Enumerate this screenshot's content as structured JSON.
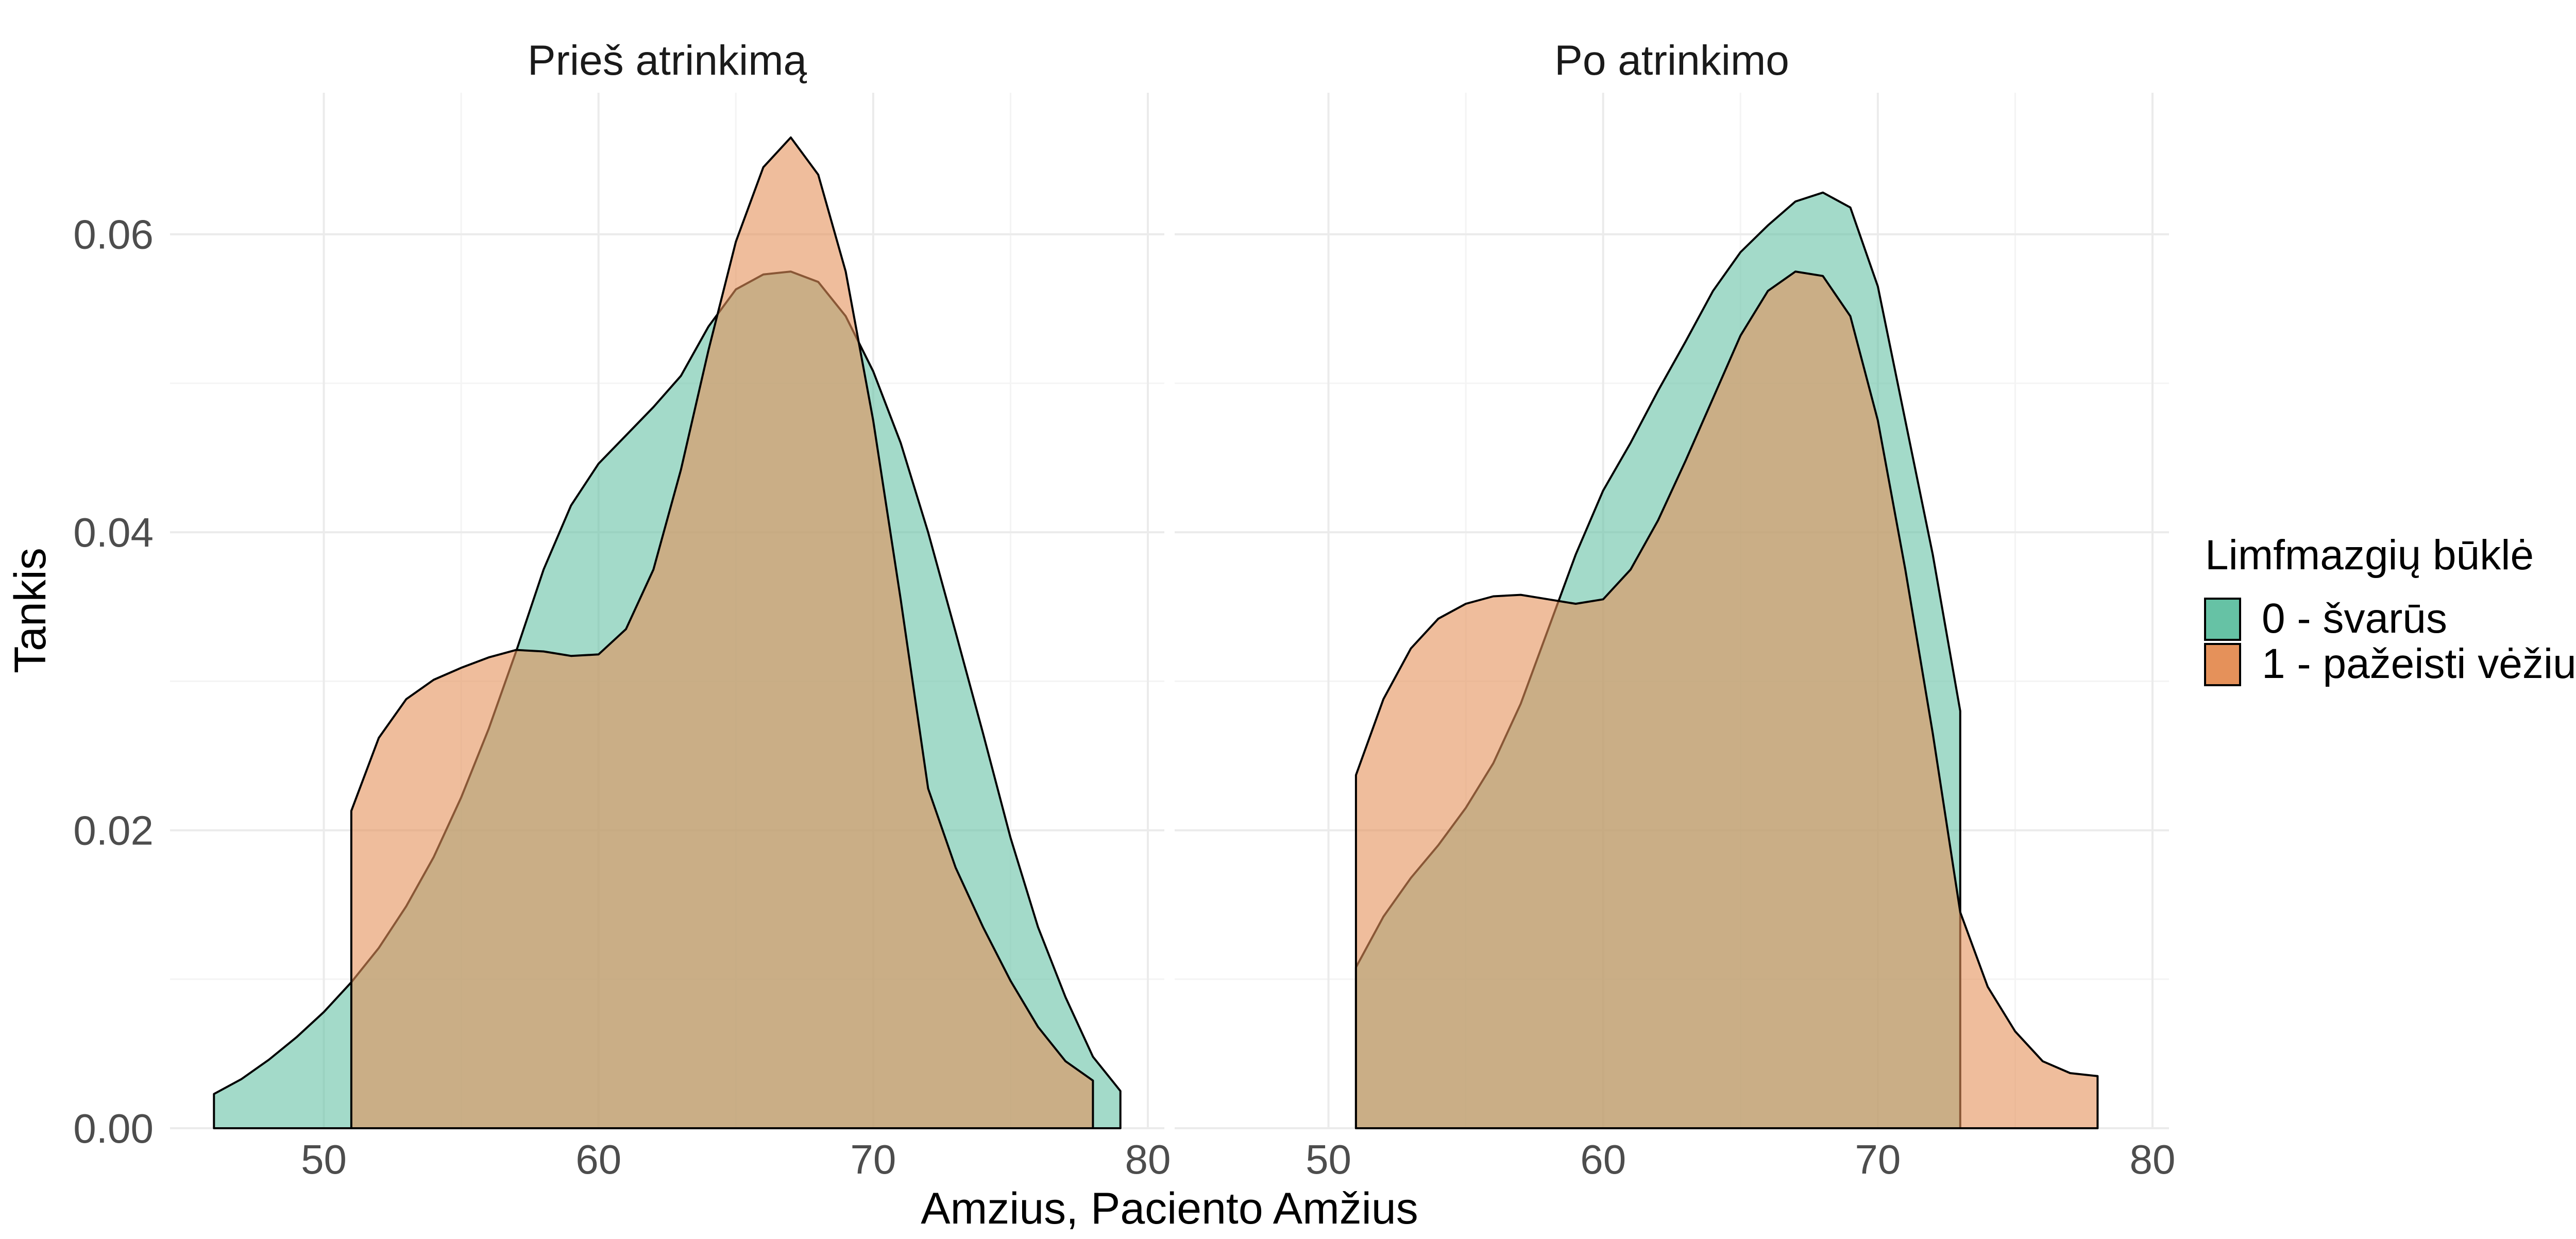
{
  "chart_data": {
    "type": "area",
    "subtype": "density",
    "xlabel": "Amzius, Paciento Amžius",
    "ylabel": "Tankis",
    "xlim": [
      44.4,
      80.6
    ],
    "ylim": [
      0,
      0.0695
    ],
    "x_ticks": [
      50,
      60,
      70,
      80
    ],
    "x_tick_labels": [
      "50",
      "60",
      "70",
      "80"
    ],
    "y_ticks": [
      0.0,
      0.02,
      0.04,
      0.06
    ],
    "y_tick_labels": [
      "0.00",
      "0.02",
      "0.04",
      "0.06"
    ],
    "grid": true,
    "legend": {
      "title": "Limfmazgių būklė",
      "position": "right",
      "entries": [
        {
          "label": "0 - švarūs",
          "color": "#66c2a5"
        },
        {
          "label": "1 - pažeisti vėžiu",
          "color": "#e5915a"
        }
      ]
    },
    "opacity": 0.6,
    "panels": [
      {
        "title": "Prieš atrinkimą",
        "series": [
          {
            "name": "0 - švarūs",
            "color": "#66c2a5",
            "x": [
              46,
              47,
              48,
              49,
              50,
              51,
              52,
              53,
              54,
              55,
              56,
              57,
              58,
              59,
              60,
              61,
              62,
              63,
              64,
              65,
              66,
              67,
              68,
              69,
              70,
              71,
              72,
              73,
              74,
              75,
              76,
              77,
              78,
              79
            ],
            "y": [
              0.0023,
              0.0033,
              0.0046,
              0.0061,
              0.0078,
              0.0098,
              0.0121,
              0.0149,
              0.0182,
              0.0222,
              0.0268,
              0.032,
              0.0375,
              0.0418,
              0.0446,
              0.0465,
              0.0484,
              0.0505,
              0.0538,
              0.0563,
              0.0573,
              0.0575,
              0.0568,
              0.0545,
              0.0508,
              0.046,
              0.04,
              0.0333,
              0.0265,
              0.0195,
              0.0135,
              0.0088,
              0.0048,
              0.0025
            ]
          },
          {
            "name": "1 - pažeisti vėžiu",
            "color": "#e5915a",
            "x": [
              51,
              52,
              53,
              54,
              55,
              56,
              57,
              58,
              59,
              60,
              61,
              62,
              63,
              64,
              65,
              66,
              67,
              68,
              69,
              70,
              71,
              72,
              73,
              74,
              75,
              76,
              77,
              78
            ],
            "y": [
              0.0213,
              0.0262,
              0.0288,
              0.0301,
              0.0309,
              0.0316,
              0.0321,
              0.032,
              0.0317,
              0.0318,
              0.0335,
              0.0375,
              0.0442,
              0.0522,
              0.0595,
              0.0645,
              0.0665,
              0.064,
              0.0575,
              0.0475,
              0.0355,
              0.0228,
              0.0175,
              0.0135,
              0.0099,
              0.0068,
              0.0045,
              0.0032
            ]
          }
        ]
      },
      {
        "title": "Po atrinkimo",
        "series": [
          {
            "name": "0 - švarūs",
            "color": "#66c2a5",
            "x": [
              51,
              52,
              53,
              54,
              55,
              56,
              57,
              58,
              59,
              60,
              61,
              62,
              63,
              64,
              65,
              66,
              67,
              68,
              69,
              70,
              71,
              72,
              73
            ],
            "y": [
              0.0108,
              0.0142,
              0.0168,
              0.019,
              0.0215,
              0.0245,
              0.0285,
              0.0335,
              0.0385,
              0.0428,
              0.046,
              0.0495,
              0.0528,
              0.0562,
              0.0588,
              0.0606,
              0.0622,
              0.0628,
              0.0618,
              0.0565,
              0.0475,
              0.0385,
              0.028
            ]
          },
          {
            "name": "1 - pažeisti vėžiu",
            "color": "#e5915a",
            "x": [
              51,
              52,
              53,
              54,
              55,
              56,
              57,
              58,
              59,
              60,
              61,
              62,
              63,
              64,
              65,
              66,
              67,
              68,
              69,
              70,
              71,
              72,
              73,
              74,
              75,
              76,
              77,
              78
            ],
            "y": [
              0.0237,
              0.0288,
              0.0322,
              0.0342,
              0.0352,
              0.0357,
              0.0358,
              0.0355,
              0.0352,
              0.0355,
              0.0375,
              0.0408,
              0.0448,
              0.049,
              0.0532,
              0.0562,
              0.0575,
              0.0572,
              0.0545,
              0.0475,
              0.0375,
              0.0265,
              0.0145,
              0.0095,
              0.0065,
              0.0045,
              0.0037,
              0.0035
            ]
          }
        ]
      }
    ]
  }
}
